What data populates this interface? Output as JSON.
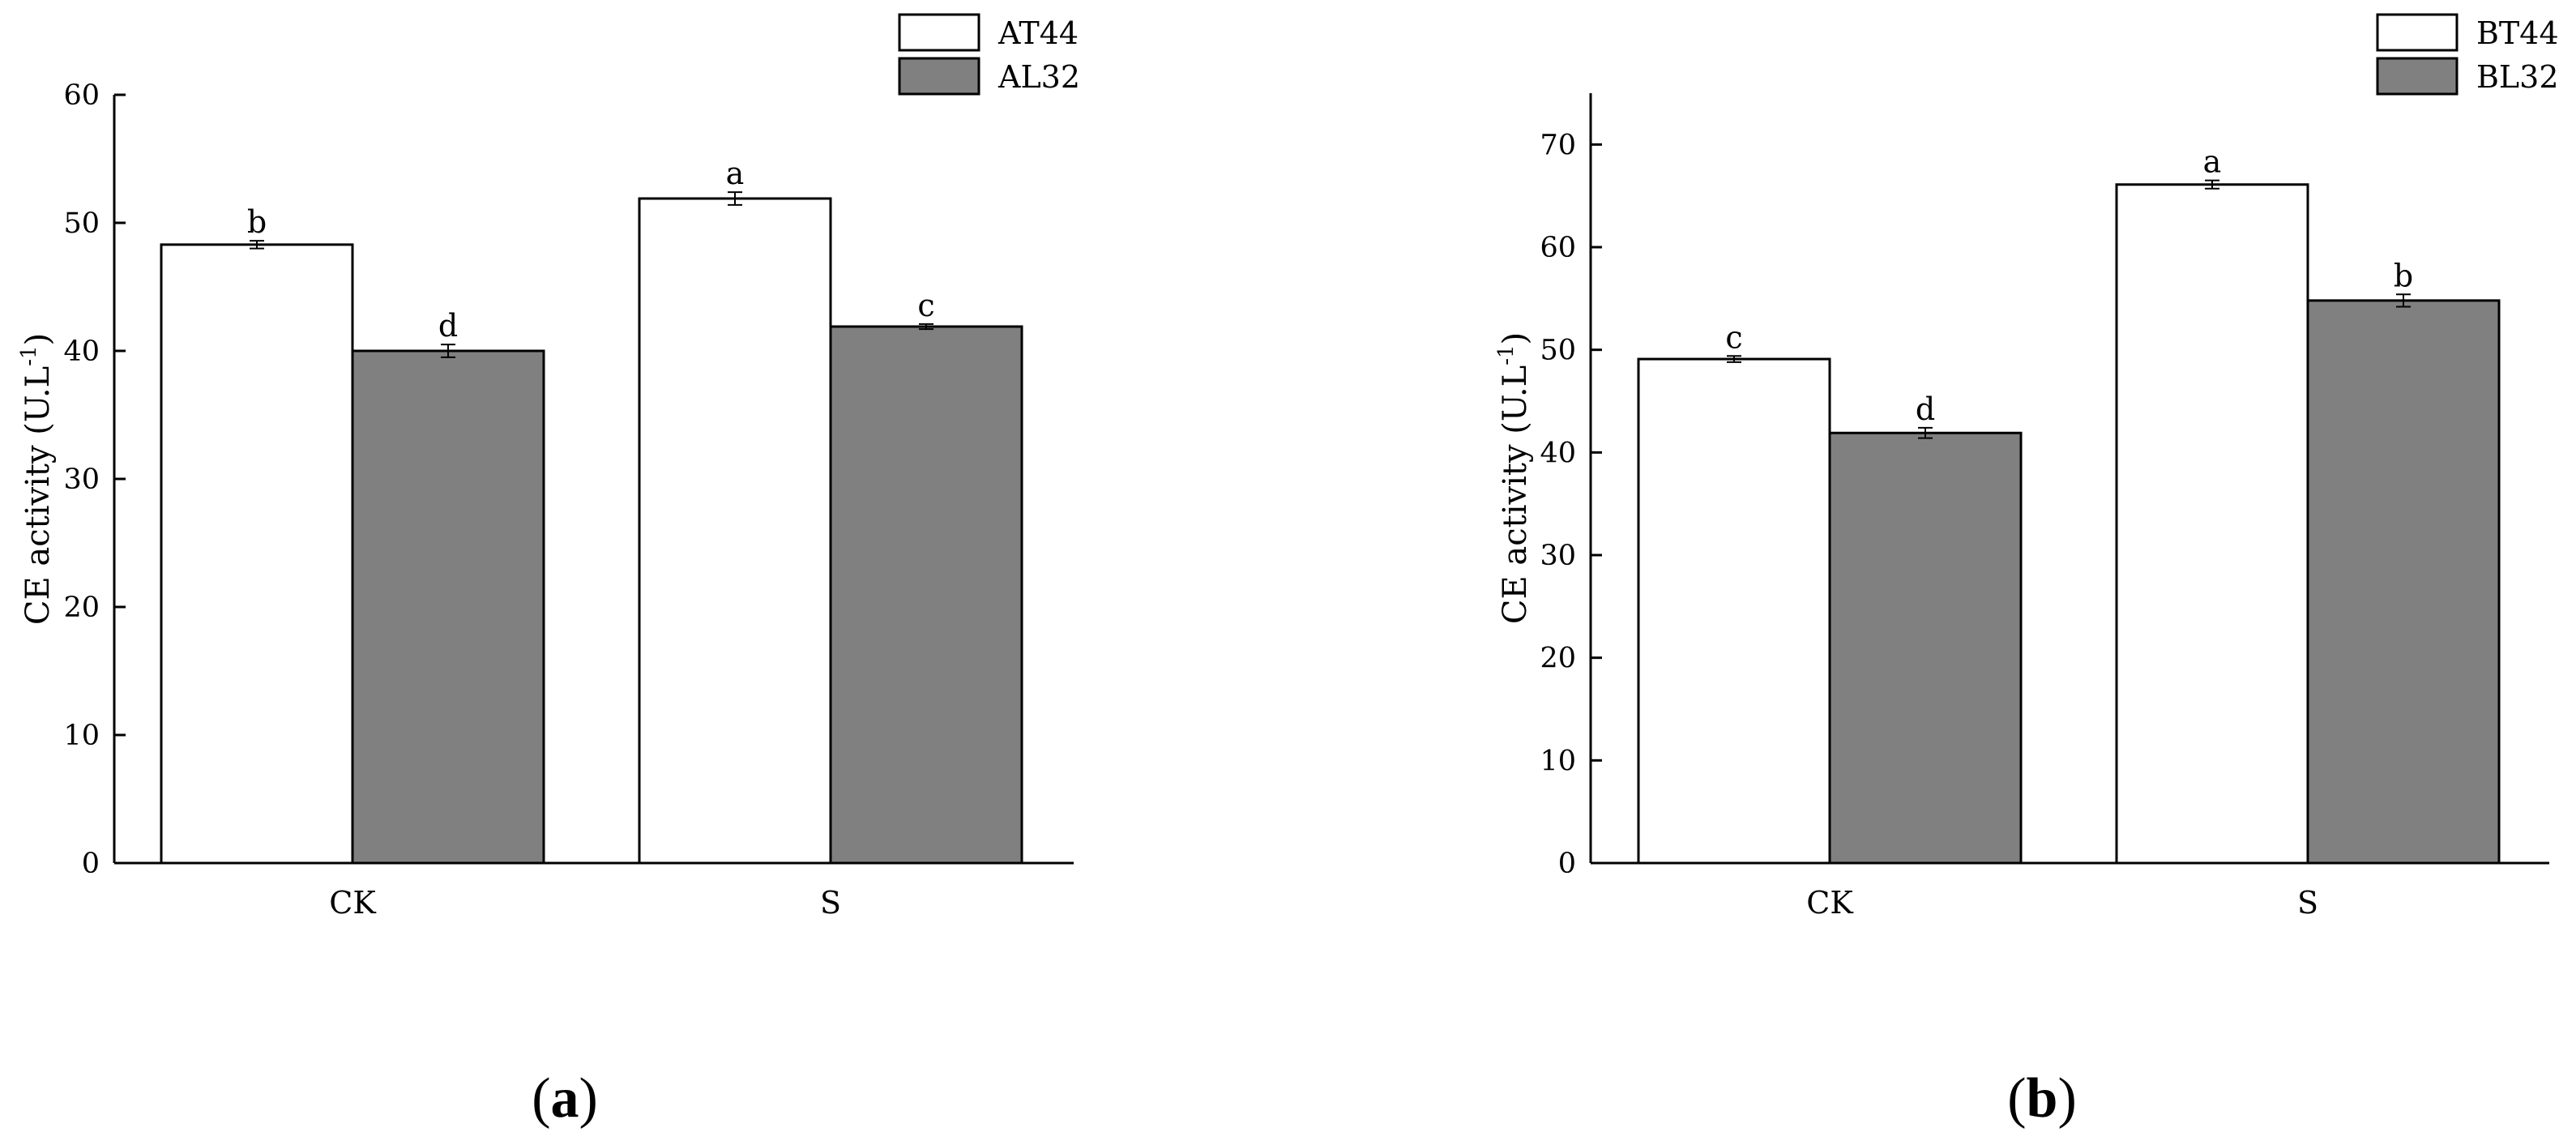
{
  "chart_data": [
    {
      "type": "bar",
      "panel_label": "a",
      "ylabel": "CE activity (U.L",
      "ylabel_sup": "-1",
      "ylabel_close": ")",
      "ylim": [
        0,
        60
      ],
      "yticks": [
        0,
        10,
        20,
        30,
        40,
        50,
        60
      ],
      "categories": [
        "CK",
        "S"
      ],
      "series": [
        {
          "name": "AT44",
          "color": "#ffffff",
          "values": [
            48.3,
            51.9
          ],
          "errors": [
            0.3,
            0.5
          ],
          "letters": [
            "b",
            "a"
          ]
        },
        {
          "name": "AL32",
          "color": "#808080",
          "values": [
            40.0,
            41.9
          ],
          "errors": [
            0.5,
            0.2
          ],
          "letters": [
            "d",
            "c"
          ]
        }
      ],
      "legend_position": "top-right",
      "grid": false
    },
    {
      "type": "bar",
      "panel_label": "b",
      "ylabel": "CE activity (U.L",
      "ylabel_sup": "-1",
      "ylabel_close": ")",
      "ylim": [
        0,
        75
      ],
      "yticks": [
        0,
        10,
        20,
        30,
        40,
        50,
        60,
        70
      ],
      "categories": [
        "CK",
        "S"
      ],
      "series": [
        {
          "name": "BT44",
          "color": "#ffffff",
          "values": [
            49.1,
            66.1
          ],
          "errors": [
            0.3,
            0.4
          ],
          "letters": [
            "c",
            "a"
          ]
        },
        {
          "name": "BL32",
          "color": "#808080",
          "values": [
            41.9,
            54.8
          ],
          "errors": [
            0.5,
            0.6
          ],
          "letters": [
            "d",
            "b"
          ]
        }
      ],
      "legend_position": "top-right",
      "grid": false
    }
  ]
}
